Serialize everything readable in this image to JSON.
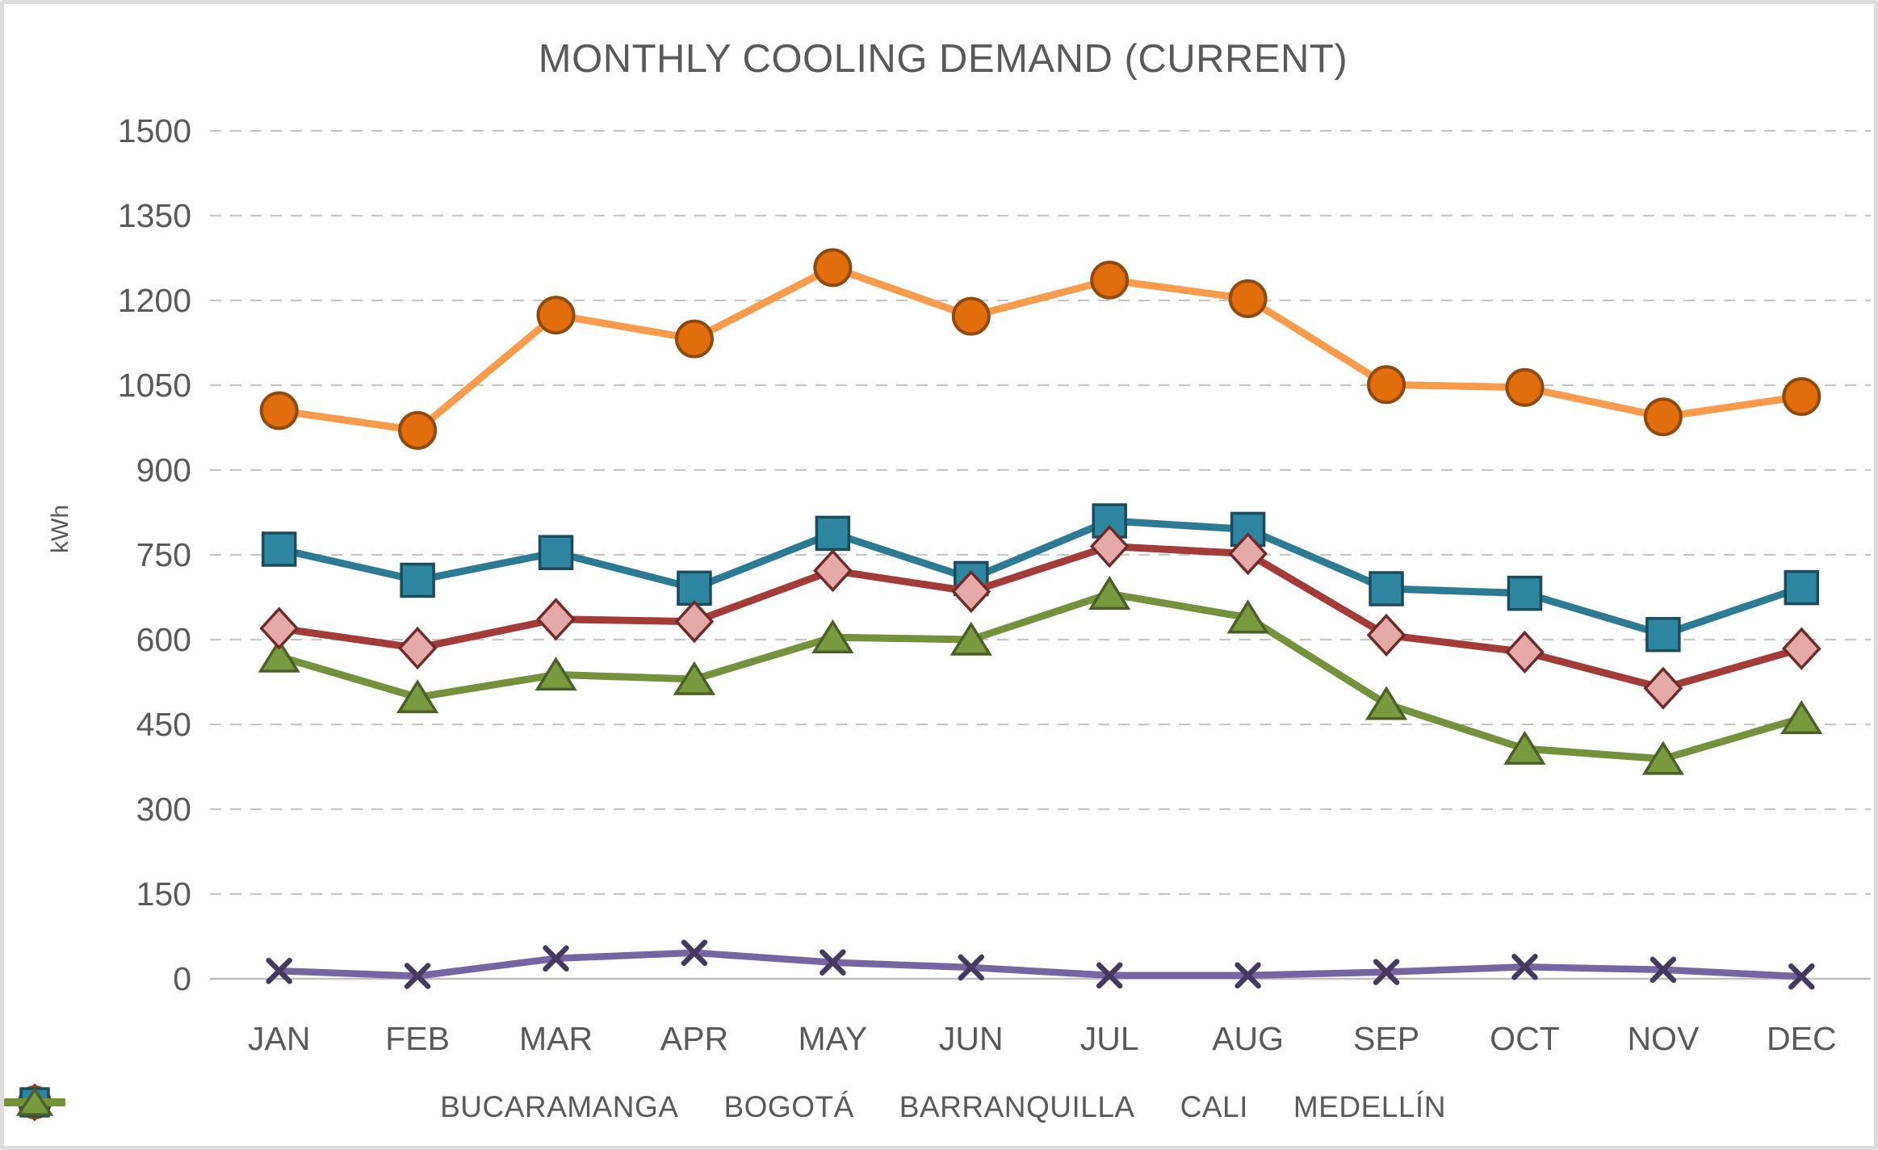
{
  "chart_data": {
    "type": "line",
    "title": "MONTHLY COOLING DEMAND (CURRENT)",
    "ylabel": "kWh",
    "xlabel": "",
    "ylim": [
      0,
      1500
    ],
    "ytick_step": 150,
    "yticks": [
      0,
      150,
      300,
      450,
      600,
      750,
      900,
      1050,
      1200,
      1350,
      1500
    ],
    "grid": "dashed horizontal",
    "legend_position": "bottom",
    "categories": [
      "JAN",
      "FEB",
      "MAR",
      "APR",
      "MAY",
      "JUN",
      "JUL",
      "AUG",
      "SEP",
      "OCT",
      "NOV",
      "DEC"
    ],
    "series": [
      {
        "name": "BUCARAMANGA",
        "marker": "diamond",
        "line_color": "#A33C39",
        "marker_fill": "#E5A9A7",
        "marker_stroke": "#6F2B28",
        "values": [
          620,
          585,
          636,
          632,
          722,
          685,
          765,
          752,
          608,
          578,
          514,
          584
        ]
      },
      {
        "name": "BOGOTÁ",
        "marker": "x",
        "line_color": "#7566A3",
        "marker_fill": "#46395F",
        "marker_stroke": "#46395F",
        "values": [
          14,
          5,
          36,
          46,
          29,
          20,
          6,
          6,
          12,
          21,
          16,
          4
        ]
      },
      {
        "name": "BARRANQUILLA",
        "marker": "circle",
        "line_color": "#F89B4C",
        "marker_fill": "#E16D0C",
        "marker_stroke": "#8F4A0E",
        "values": [
          1005,
          970,
          1174,
          1132,
          1258,
          1172,
          1236,
          1203,
          1051,
          1046,
          994,
          1030
        ]
      },
      {
        "name": "CALI",
        "marker": "square",
        "line_color": "#2C7A94",
        "marker_fill": "#2E86A0",
        "marker_stroke": "#1B4C5D",
        "values": [
          760,
          705,
          754,
          691,
          788,
          708,
          810,
          795,
          690,
          682,
          609,
          692
        ]
      },
      {
        "name": "MEDELLÍN",
        "marker": "triangle",
        "line_color": "#75913B",
        "marker_fill": "#7A9A3F",
        "marker_stroke": "#4A6026",
        "values": [
          570,
          498,
          538,
          530,
          604,
          600,
          681,
          639,
          486,
          407,
          389,
          461
        ]
      }
    ],
    "colors": {
      "text": "#595959",
      "grid": "#C6C6C6",
      "axis_line": "#BFBFBF",
      "frame_border": "#DCDCDC"
    }
  }
}
